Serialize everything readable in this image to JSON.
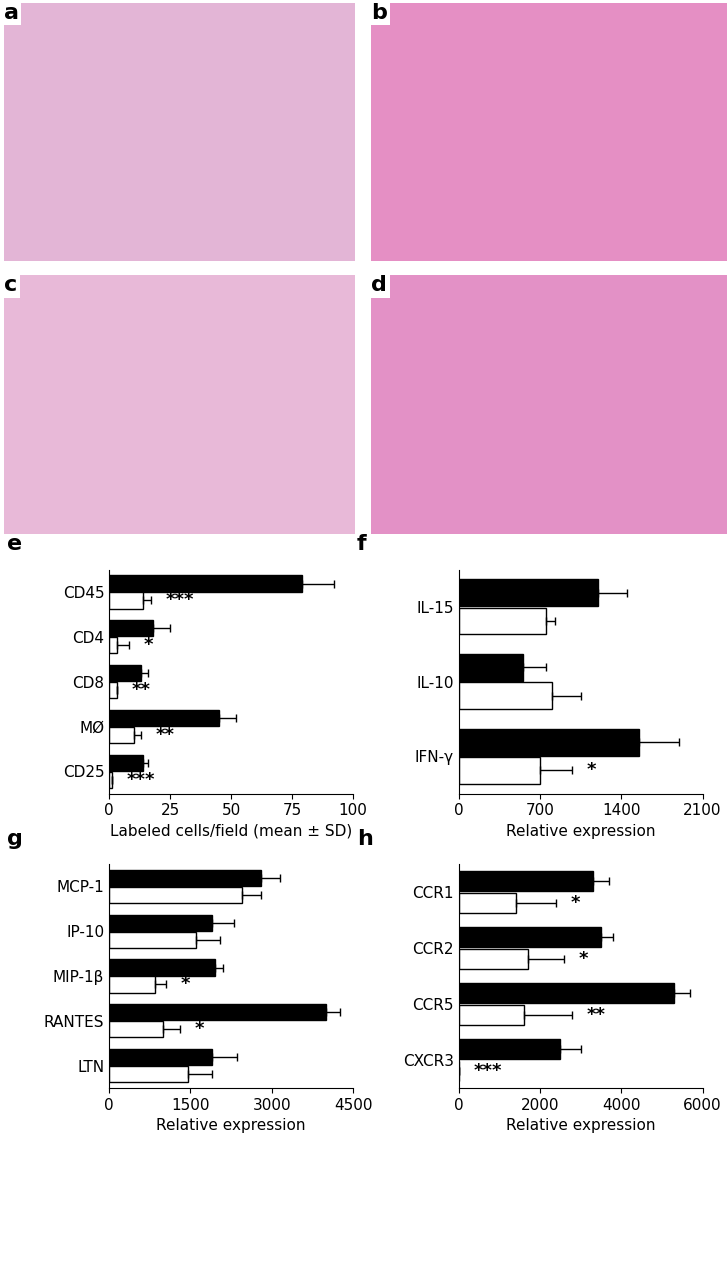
{
  "images": [
    {
      "label": "a"
    },
    {
      "label": "b"
    },
    {
      "label": "c"
    },
    {
      "label": "d"
    }
  ],
  "chart_data": [
    {
      "type": "bar",
      "title": "e",
      "orientation": "horizontal",
      "categories": [
        "CD45",
        "CD4",
        "CD8",
        "MØ",
        "CD25"
      ],
      "series": [
        {
          "color": "#000000",
          "values": [
            79,
            18,
            13,
            45,
            14
          ],
          "errors": [
            13,
            7,
            3,
            7,
            2
          ]
        },
        {
          "color": "#ffffff",
          "values": [
            14,
            3,
            3,
            10,
            1
          ],
          "errors": [
            3,
            5,
            0,
            3,
            0
          ]
        }
      ],
      "annotations": [
        "***",
        "*",
        "**",
        "**",
        "***"
      ],
      "xlabel": "Labeled cells/field (mean ± SD)",
      "xlim": [
        0,
        100
      ],
      "xticks": [
        0,
        25,
        50,
        75,
        100
      ]
    },
    {
      "type": "bar",
      "title": "f",
      "orientation": "horizontal",
      "categories": [
        "IL-15",
        "IL-10",
        "IFN-γ"
      ],
      "series": [
        {
          "color": "#000000",
          "values": [
            1200,
            550,
            1550
          ],
          "errors": [
            250,
            200,
            350
          ]
        },
        {
          "color": "#ffffff",
          "values": [
            750,
            800,
            700
          ],
          "errors": [
            80,
            250,
            280
          ]
        }
      ],
      "annotations": [
        null,
        null,
        "*"
      ],
      "xlabel": "Relative expression",
      "xlim": [
        0,
        2100
      ],
      "xticks": [
        0,
        700,
        1400,
        2100
      ]
    },
    {
      "type": "bar",
      "title": "g",
      "orientation": "horizontal",
      "categories": [
        "MCP-1",
        "IP-10",
        "MIP-1β",
        "RANTES",
        "LTN"
      ],
      "series": [
        {
          "color": "#000000",
          "values": [
            2800,
            1900,
            1950,
            4000,
            1900
          ],
          "errors": [
            350,
            400,
            150,
            250,
            450
          ]
        },
        {
          "color": "#ffffff",
          "values": [
            2450,
            1600,
            850,
            1000,
            1450
          ],
          "errors": [
            350,
            450,
            200,
            300,
            450
          ]
        }
      ],
      "annotations": [
        null,
        null,
        "*",
        "*",
        null
      ],
      "xlabel": "Relative expression",
      "xlim": [
        0,
        4500
      ],
      "xticks": [
        0,
        1500,
        3000,
        4500
      ]
    },
    {
      "type": "bar",
      "title": "h",
      "orientation": "horizontal",
      "categories": [
        "CCR1",
        "CCR2",
        "CCR5",
        "CXCR3"
      ],
      "series": [
        {
          "color": "#000000",
          "values": [
            3300,
            3500,
            5300,
            2500
          ],
          "errors": [
            400,
            300,
            400,
            500
          ]
        },
        {
          "color": "#ffffff",
          "values": [
            1400,
            1700,
            1600,
            0
          ],
          "errors": [
            1000,
            900,
            1200,
            0
          ]
        }
      ],
      "annotations": [
        "*",
        "*",
        "**",
        "***"
      ],
      "xlabel": "Relative expression",
      "xlim": [
        0,
        6000
      ],
      "xticks": [
        0,
        2000,
        4000,
        6000
      ]
    }
  ]
}
